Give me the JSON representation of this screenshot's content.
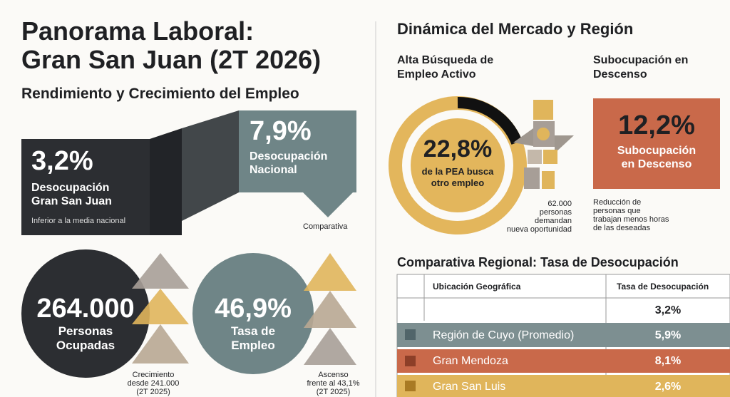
{
  "header": {
    "title_line1": "Panorama Laboral:",
    "title_line2": "Gran San Juan (2T 2026)"
  },
  "left": {
    "section_title": "Rendimiento y Crecimiento del Empleo",
    "local": {
      "value": "3,2%",
      "label_line1": "Desocupación",
      "label_line2": "Gran San Juan",
      "note": "Inferior a la media nacional"
    },
    "national": {
      "value": "7,9%",
      "label_line1": "Desocupación",
      "label_line2": "Nacional",
      "note": "Comparativa"
    },
    "employed": {
      "value": "264.000",
      "label_line1": "Personas",
      "label_line2": "Ocupadas",
      "note_lines": [
        "Crecimiento",
        "desde 241.000",
        "(2T 2025)"
      ]
    },
    "rate": {
      "value": "46,9%",
      "label_line1": "Tasa de",
      "label_line2": "Empleo",
      "note_lines": [
        "Ascenso",
        "frente al 43,1%",
        "(2T 2025)"
      ]
    }
  },
  "right": {
    "section_title": "Dinámica del Mercado y Región",
    "search": {
      "title_line1": "Alta Búsqueda de",
      "title_line2": "Empleo Activo",
      "value": "22,8%",
      "label_line1": "de la PEA busca",
      "label_line2": "otro empleo",
      "note_lines": [
        "62.000",
        "personas",
        "demandan",
        "nueva oportunidad"
      ]
    },
    "sub": {
      "title_line1": "Subocupación en",
      "title_line2": "Descenso",
      "value": "12,2%",
      "label_line1": "Subocupación",
      "label_line2": "en Descenso",
      "note_lines": [
        "Reducción de",
        "personas que",
        "trabajan menos horas",
        "de las deseadas"
      ]
    },
    "table": {
      "title": "Comparativa Regional: Tasa de Desocupación",
      "headers": [
        "Ubicación Geográfica",
        "Tasa de Desocupación"
      ],
      "rows": [
        [
          "",
          "3,2%"
        ],
        [
          "Región de Cuyo (Promedio)",
          "5,9%"
        ],
        [
          "Gran Mendoza",
          "8,1%"
        ],
        [
          "Gran San Luis",
          "2,6%"
        ]
      ]
    }
  }
}
